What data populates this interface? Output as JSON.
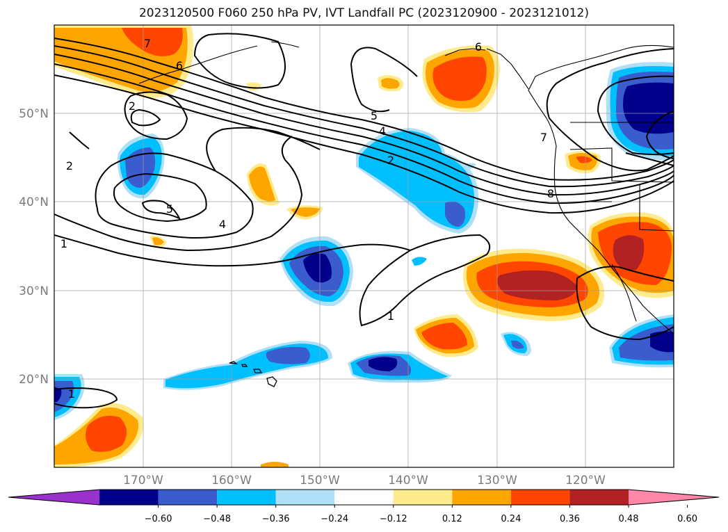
{
  "title": "2023120500 F060 250 hPa PV, IVT Landfall PC (2023120900 - 2023121012)",
  "map": {
    "projection": "PlateCarree",
    "lon_range": [
      -180,
      -110
    ],
    "lat_range": [
      10,
      60
    ],
    "lat_ticks": [
      {
        "value": 20,
        "label": "20°N"
      },
      {
        "value": 30,
        "label": "30°N"
      },
      {
        "value": 40,
        "label": "40°N"
      },
      {
        "value": 50,
        "label": "50°N"
      }
    ],
    "lon_ticks": [
      {
        "value": -170,
        "label": "170°W"
      },
      {
        "value": -160,
        "label": "160°W"
      },
      {
        "value": -150,
        "label": "150°W"
      },
      {
        "value": -140,
        "label": "140°W"
      },
      {
        "value": -130,
        "label": "130°W"
      },
      {
        "value": -120,
        "label": "120°W"
      }
    ],
    "gridlines": true,
    "contour_labels": [
      {
        "text": "7",
        "lon": -179.5,
        "lat": 55.8
      },
      {
        "text": "6",
        "lon": -178.5,
        "lat": 54.4
      },
      {
        "text": "2",
        "lon": -178.0,
        "lat": 46.7
      },
      {
        "text": "2",
        "lon": -179.0,
        "lat": 40.0
      },
      {
        "text": "1",
        "lon": -179.1,
        "lat": 34.6
      },
      {
        "text": "5",
        "lon": -179.2,
        "lat": 38.8
      },
      {
        "text": "4",
        "lon": -177.5,
        "lat": 36.6
      },
      {
        "text": "5",
        "lon": -176.1,
        "lat": 51.9
      },
      {
        "text": "4",
        "lon": -175.0,
        "lat": 50.7
      },
      {
        "text": "2",
        "lon": -175.9,
        "lat": 48.6
      },
      {
        "text": "1",
        "lon": -176.6,
        "lat": 25.8
      },
      {
        "text": "6",
        "lon": -172.8,
        "lat": 58.4
      },
      {
        "text": "7",
        "lon": -170.3,
        "lat": 46.6
      },
      {
        "text": "8",
        "lon": -169.8,
        "lat": 38.4
      },
      {
        "text": "1",
        "lon": -172.6,
        "lat": 28.6
      }
    ]
  },
  "colorbar": {
    "ticks": [
      "−0.60",
      "−0.48",
      "−0.36",
      "−0.24",
      "−0.12",
      "0.12",
      "0.24",
      "0.36",
      "0.48",
      "0.60"
    ],
    "colors": [
      "#9932cc",
      "#00008b",
      "#3a5ccc",
      "#00bfff",
      "#b0e0f8",
      "#ffffff",
      "#ffeb8c",
      "#ffa500",
      "#ff4500",
      "#b22222",
      "#ff88aa"
    ]
  }
}
